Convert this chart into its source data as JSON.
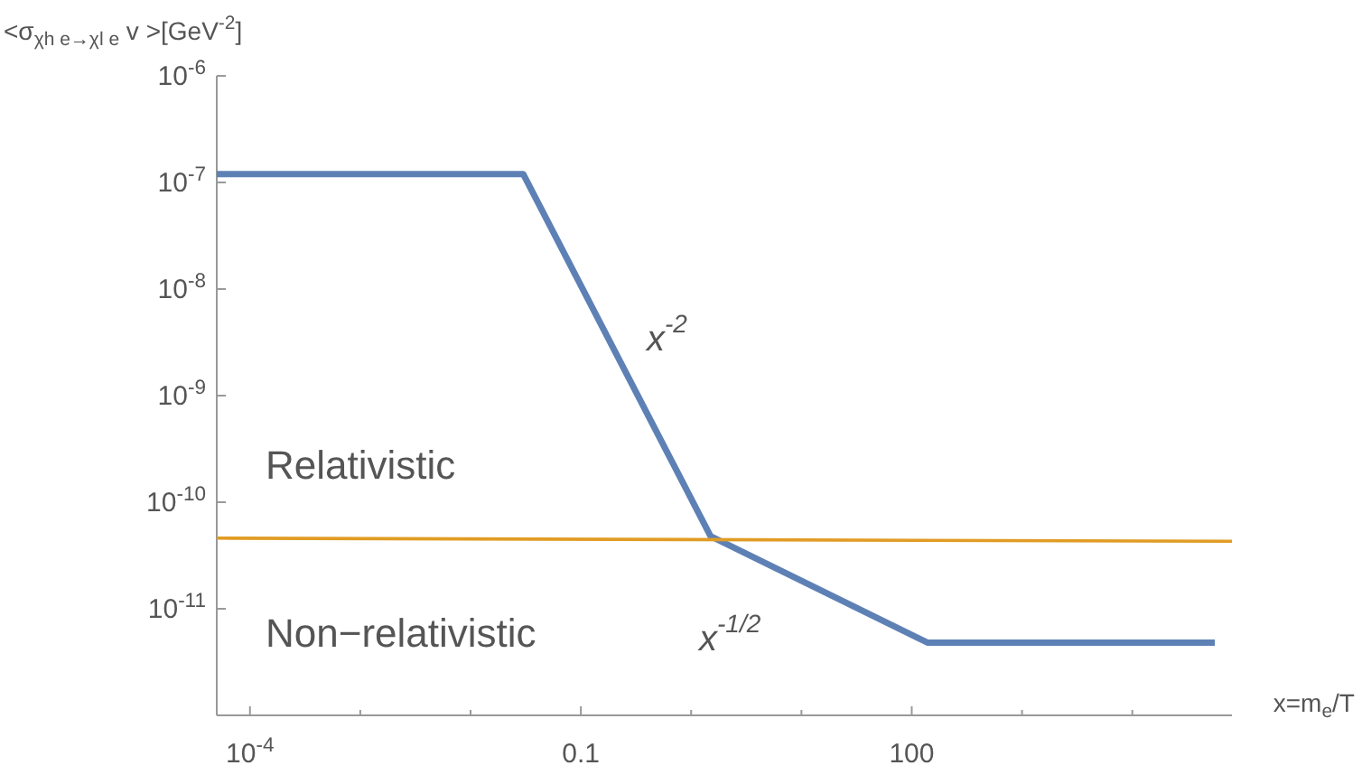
{
  "chart_data": {
    "type": "line",
    "xlabel": "x=m$_{e}$/T",
    "ylabel": "<σ$_{χh e→χl e}$ v >[GeV$^{-2}$]",
    "log": "xy",
    "grid": false,
    "marker": "none",
    "line_style": "solid",
    "xlim": [
      5e-05,
      80000.0
    ],
    "ylim": [
      1e-12,
      1e-06
    ],
    "xticks": [
      {
        "value": 0.0001,
        "label": "10$^{-4}$"
      },
      {
        "value": 0.001,
        "label": null
      },
      {
        "value": 0.01,
        "label": null
      },
      {
        "value": 0.1,
        "label": "0.1"
      },
      {
        "value": 1,
        "label": null
      },
      {
        "value": 10,
        "label": null
      },
      {
        "value": 100,
        "label": "100"
      },
      {
        "value": 1000,
        "label": null
      },
      {
        "value": 10000,
        "label": null
      }
    ],
    "yticks": [
      {
        "value": 1e-06,
        "label": "10$^{-6}$"
      },
      {
        "value": 1e-07,
        "label": "10$^{-7}$"
      },
      {
        "value": 1e-08,
        "label": "10$^{-8}$"
      },
      {
        "value": 1e-09,
        "label": "10$^{-9}$"
      },
      {
        "value": 1e-10,
        "label": "10$^{-10}$"
      },
      {
        "value": 1e-11,
        "label": "10$^{-11}$"
      }
    ],
    "series": [
      {
        "color": "#5e81b5",
        "x": [
          5e-05,
          0.03,
          1.5,
          140,
          56000
        ],
        "values": [
          1.2e-07,
          1.2e-07,
          4.8e-11,
          4.8e-12,
          4.8e-12
        ]
      },
      {
        "color": "#e19c24",
        "x": [
          5e-05,
          80000
        ],
        "values": [
          4.6e-11,
          4.3e-11
        ]
      }
    ],
    "annotations": [
      "x$^{-2}$",
      "x$^{-1/2}$",
      "Relativistic",
      "Non−relativistic"
    ]
  }
}
